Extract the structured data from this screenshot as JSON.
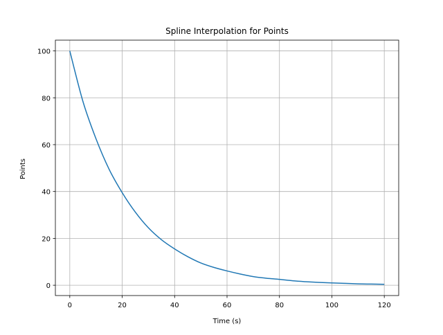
{
  "chart_data": {
    "type": "line",
    "title": "Spline Interpolation for Points",
    "xlabel": "Time (s)",
    "ylabel": "Points",
    "xlim": [
      -5.5,
      125.5
    ],
    "ylim": [
      -4.4,
      104.6
    ],
    "xticks": [
      0,
      20,
      40,
      60,
      80,
      100,
      120
    ],
    "yticks": [
      0,
      20,
      40,
      60,
      80,
      100
    ],
    "grid": true,
    "series": [
      {
        "color": "#1f77b4",
        "x": [
          0,
          5,
          10,
          15,
          20,
          25,
          30,
          35,
          40,
          45,
          50,
          55,
          60,
          65,
          70,
          75,
          80,
          85,
          90,
          95,
          100,
          105,
          110,
          115,
          120
        ],
        "y": [
          100,
          78.5,
          62.5,
          49.5,
          39.5,
          31.2,
          24.5,
          19.4,
          15.5,
          12.2,
          9.5,
          7.6,
          6.1,
          4.8,
          3.7,
          3.0,
          2.5,
          1.9,
          1.5,
          1.2,
          1.0,
          0.8,
          0.6,
          0.5,
          0.4
        ]
      }
    ]
  }
}
